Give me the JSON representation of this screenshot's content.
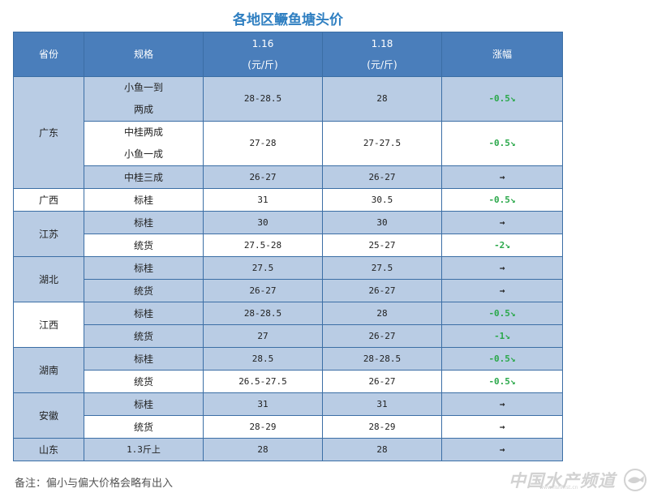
{
  "title": "各地区鳜鱼塘头价",
  "header": {
    "province": "省份",
    "spec": "规格",
    "date1_line1": "1.16",
    "date1_line2": "(元/斤)",
    "date2_line1": "1.18",
    "date2_line2": "(元/斤)",
    "change": "涨幅"
  },
  "provinces": {
    "guangdong": "广东",
    "guangxi": "广西",
    "jiangsu": "江苏",
    "hubei": "湖北",
    "jiangxi": "江西",
    "hunan": "湖南",
    "anhui": "安徽",
    "shandong": "山东"
  },
  "rows": [
    {
      "spec_line1": "小鱼一到",
      "spec_line2": "两成",
      "p1": "28-28.5",
      "p2": "28",
      "change": "-0.5↘"
    },
    {
      "spec_line1": "中桂两成",
      "spec_line2": "小鱼一成",
      "p1": "27-28",
      "p2": "27-27.5",
      "change": "-0.5↘"
    },
    {
      "spec": "中桂三成",
      "p1": "26-27",
      "p2": "26-27",
      "change": "→"
    },
    {
      "spec": "标桂",
      "p1": "31",
      "p2": "30.5",
      "change": "-0.5↘"
    },
    {
      "spec": "标桂",
      "p1": "30",
      "p2": "30",
      "change": "→"
    },
    {
      "spec": "统货",
      "p1": "27.5-28",
      "p2": "25-27",
      "change": "-2↘"
    },
    {
      "spec": "标桂",
      "p1": "27.5",
      "p2": "27.5",
      "change": "→"
    },
    {
      "spec": "统货",
      "p1": "26-27",
      "p2": "26-27",
      "change": "→"
    },
    {
      "spec": "标桂",
      "p1": "28-28.5",
      "p2": "28",
      "change": "-0.5↘"
    },
    {
      "spec": "统货",
      "p1": "27",
      "p2": "26-27",
      "change": "-1↘"
    },
    {
      "spec": "标桂",
      "p1": "28.5",
      "p2": "28-28.5",
      "change": "-0.5↘"
    },
    {
      "spec": "统货",
      "p1": "26.5-27.5",
      "p2": "26-27",
      "change": "-0.5↘"
    },
    {
      "spec": "标桂",
      "p1": "31",
      "p2": "31",
      "change": "→"
    },
    {
      "spec": "统货",
      "p1": "28-29",
      "p2": "28-29",
      "change": "→"
    },
    {
      "spec": "1.3斤上",
      "p1": "28",
      "p2": "28",
      "change": "→"
    }
  ],
  "note": "备注：偏小与偏大价格会略有出入",
  "watermark": {
    "text": "中国水产频道",
    "url": "www.fishfirst.cn"
  },
  "colors": {
    "header_bg": "#4a7ebb",
    "band_bg": "#b9cce4",
    "title": "#2f7fc1",
    "down": "#2aa84a"
  }
}
